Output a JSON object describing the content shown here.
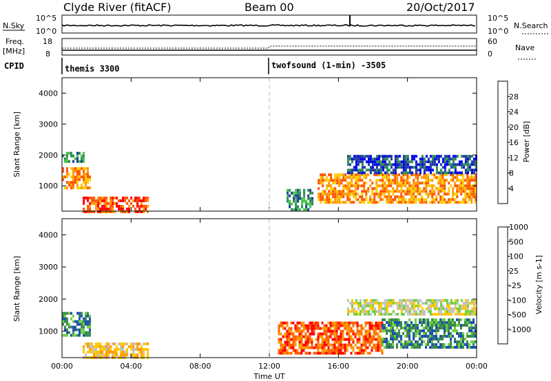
{
  "header": {
    "radar": "Clyde River (fitACF)",
    "beam": "Beam 00",
    "date": "20/Oct/2017"
  },
  "strips": {
    "nsky_label": "N.Sky",
    "nsky_ticks": [
      "10^5",
      "10^0"
    ],
    "nsearch_label": "N.Search",
    "nsearch_ticks": [
      "10^5",
      "10^0"
    ],
    "freq_label": "Freq.",
    "freq_unit": "[MHz]",
    "freq_ticks": [
      "18",
      "8"
    ],
    "nave_label": "Nave",
    "nave_ticks": [
      "60",
      "0"
    ],
    "cpid_label": "CPID",
    "cpid_segments": [
      {
        "text": "themis 3300",
        "start_hour": 0
      },
      {
        "text": "twofsound (1-min) -3505",
        "start_hour": 12
      }
    ]
  },
  "colors": {
    "power": [
      "#0000ee",
      "#1e3c9c",
      "#2e8b57",
      "#48c448",
      "#ffcc00",
      "#ff9900",
      "#ff5500",
      "#ff0000"
    ],
    "velocity": [
      "#ff0000",
      "#ff6000",
      "#ff9900",
      "#ffc800",
      "#c0c0c0",
      "#70d040",
      "#3a8a50",
      "#1e50b4"
    ]
  },
  "chart_data": [
    {
      "type": "heatmap",
      "name": "power",
      "ylabel": "Slant Range [km]",
      "xlim": [
        0,
        24
      ],
      "ylim": [
        180,
        4500
      ],
      "yticks": [
        1000,
        2000,
        3000,
        4000
      ],
      "xticks": [
        0,
        4,
        8,
        12,
        16,
        20,
        24
      ],
      "xtick_labels": [
        "00:00",
        "04:00",
        "08:00",
        "12:00",
        "16:00",
        "20:00",
        "00:00"
      ],
      "colorbar": {
        "label": "Power [dB]",
        "ticks": [
          "4",
          "8",
          "12",
          "16",
          "20",
          "24",
          "28"
        ],
        "range": [
          0,
          32
        ]
      },
      "regions": [
        {
          "t0": 0.0,
          "t1": 1.6,
          "r0": 900,
          "r1": 1600,
          "level": 24
        },
        {
          "t0": 0.0,
          "t1": 1.2,
          "r0": 1800,
          "r1": 2100,
          "level": 10
        },
        {
          "t0": 1.2,
          "t1": 5.0,
          "r0": 200,
          "r1": 650,
          "level": 26
        },
        {
          "t0": 13.0,
          "t1": 14.5,
          "r0": 200,
          "r1": 900,
          "level": 12
        },
        {
          "t0": 14.8,
          "t1": 24.0,
          "r0": 500,
          "r1": 1400,
          "level": 25
        },
        {
          "t0": 16.5,
          "t1": 24.0,
          "r0": 1400,
          "r1": 2000,
          "level": 9
        }
      ]
    },
    {
      "type": "heatmap",
      "name": "velocity",
      "ylabel": "Slant Range [km]",
      "xlabel": "Time UT",
      "xlim": [
        0,
        24
      ],
      "ylim": [
        180,
        4500
      ],
      "yticks": [
        1000,
        2000,
        3000,
        4000
      ],
      "xticks": [
        0,
        4,
        8,
        12,
        16,
        20,
        24
      ],
      "xtick_labels": [
        "00:00",
        "04:00",
        "08:00",
        "12:00",
        "16:00",
        "20:00",
        "00:00"
      ],
      "colorbar": {
        "label": "Velocity [m s-1]",
        "ticks": [
          "-1000",
          "-500",
          "-100",
          "-25",
          "25",
          "100",
          "500",
          "1000"
        ]
      },
      "regions": [
        {
          "t0": 0.0,
          "t1": 1.6,
          "r0": 900,
          "r1": 1600,
          "level": 6
        },
        {
          "t0": 1.2,
          "t1": 5.0,
          "r0": 200,
          "r1": 650,
          "level": 3
        },
        {
          "t0": 12.5,
          "t1": 18.5,
          "r0": 300,
          "r1": 1300,
          "level": 1
        },
        {
          "t0": 18.5,
          "t1": 24.0,
          "r0": 500,
          "r1": 1400,
          "level": 6
        },
        {
          "t0": 16.5,
          "t1": 24.0,
          "r0": 1500,
          "r1": 2000,
          "level": 4
        }
      ]
    }
  ]
}
